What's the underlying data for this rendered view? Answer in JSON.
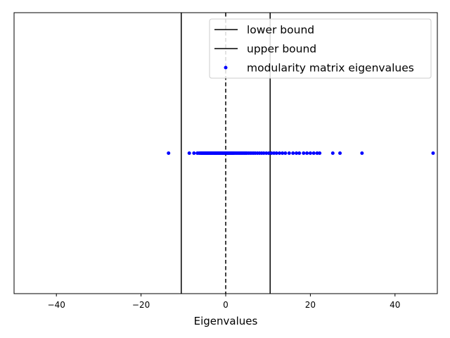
{
  "chart_data": {
    "type": "scatter",
    "title": "",
    "xlabel": "Eigenvalues",
    "ylabel": "",
    "xlim": [
      -50,
      50
    ],
    "ylim": [
      -1,
      1
    ],
    "xticks": [
      -40,
      -20,
      0,
      20,
      40
    ],
    "xtick_labels": [
      "−40",
      "−20",
      "0",
      "20",
      "40"
    ],
    "show_y_ticks": false,
    "grid": false,
    "legend_position": "top-right",
    "series": [
      {
        "name": "modularity matrix eigenvalues",
        "kind": "scatter",
        "color": "#0000ff",
        "y": 0,
        "x": [
          -13.5,
          -8.6,
          -7.5,
          -6.7,
          -6.3,
          -6.0,
          -5.8,
          -5.6,
          -5.4,
          -5.2,
          -5.0,
          -4.8,
          -4.6,
          -4.4,
          -4.2,
          -4.0,
          -3.8,
          -3.6,
          -3.4,
          -3.2,
          -3.0,
          -2.8,
          -2.6,
          -2.4,
          -2.2,
          -2.0,
          -1.8,
          -1.6,
          -1.4,
          -1.2,
          -1.0,
          -0.8,
          -0.6,
          -0.4,
          -0.2,
          0.0,
          0.2,
          0.4,
          0.6,
          0.8,
          1.0,
          1.2,
          1.4,
          1.6,
          1.8,
          2.0,
          2.3,
          2.6,
          2.9,
          3.2,
          3.5,
          3.8,
          4.1,
          4.4,
          4.7,
          5.0,
          5.4,
          5.8,
          6.2,
          6.6,
          7.0,
          7.5,
          8.0,
          8.5,
          9.0,
          9.6,
          10.2,
          10.8,
          11.4,
          12.0,
          12.7,
          13.4,
          14.1,
          15.0,
          15.9,
          16.7,
          17.4,
          18.4,
          19.2,
          20.0,
          20.8,
          21.6,
          22.2,
          25.3,
          27.0,
          32.2,
          49.0
        ]
      },
      {
        "name": "lower bound",
        "kind": "vline",
        "color": "#000000",
        "x": -10.5,
        "linestyle": "solid"
      },
      {
        "name": "upper bound",
        "kind": "vline",
        "color": "#000000",
        "x": 10.5,
        "linestyle": "solid"
      },
      {
        "name": "",
        "kind": "vline",
        "color": "#000000",
        "x": 0,
        "linestyle": "dashed"
      }
    ],
    "legend": [
      {
        "label": "lower bound",
        "marker": "line",
        "color": "#000000"
      },
      {
        "label": "upper bound",
        "marker": "line",
        "color": "#000000"
      },
      {
        "label": "modularity matrix eigenvalues",
        "marker": "dot",
        "color": "#0000ff"
      }
    ]
  }
}
